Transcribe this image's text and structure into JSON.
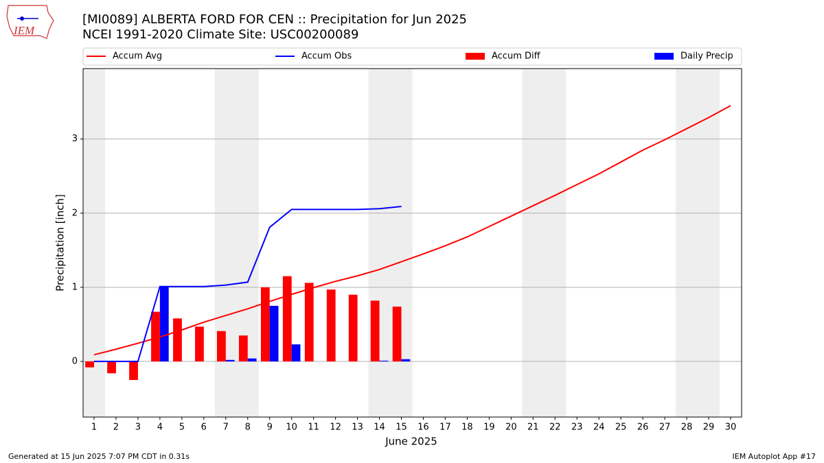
{
  "logo_text": "IEM",
  "chart_data": {
    "type": "bar-line",
    "title": "[MI0089] ALBERTA FORD FOR CEN :: Precipitation for Jun 2025",
    "subtitle": "NCEI 1991-2020 Climate Site: USC00200089",
    "x_label": "June 2025",
    "y_label": "Precipitation [inch]",
    "x": [
      1,
      2,
      3,
      4,
      5,
      6,
      7,
      8,
      9,
      10,
      11,
      12,
      13,
      14,
      15,
      16,
      17,
      18,
      19,
      20,
      21,
      22,
      23,
      24,
      25,
      26,
      27,
      28,
      29,
      30
    ],
    "xlim": [
      0.5,
      30.5
    ],
    "xticks": [
      1,
      2,
      3,
      4,
      5,
      6,
      7,
      8,
      9,
      10,
      11,
      12,
      13,
      14,
      15,
      16,
      17,
      18,
      19,
      20,
      21,
      22,
      23,
      24,
      25,
      26,
      27,
      28,
      29,
      30
    ],
    "ylim": [
      -0.75,
      3.95
    ],
    "yticks": [
      0,
      1,
      2,
      3
    ],
    "grid": true,
    "legend": "top",
    "weekend_days": [
      1,
      7,
      8,
      14,
      15,
      21,
      22,
      28,
      29
    ],
    "weekend_color": "#eeeeee",
    "series": [
      {
        "name": "Accum Avg",
        "color": "#ff0000",
        "kind": "line",
        "values": [
          0.09,
          0.165,
          0.245,
          0.33,
          0.425,
          0.53,
          0.62,
          0.71,
          0.81,
          0.905,
          0.995,
          1.08,
          1.155,
          1.24,
          1.345,
          1.45,
          1.56,
          1.68,
          1.82,
          1.96,
          2.1,
          2.24,
          2.385,
          2.53,
          2.69,
          2.85,
          2.99,
          3.14,
          3.29,
          3.45
        ]
      },
      {
        "name": "Accum Obs",
        "color": "#0000ff",
        "kind": "line",
        "values": [
          0,
          0,
          0,
          1.01,
          1.01,
          1.01,
          1.03,
          1.07,
          1.81,
          2.05,
          2.05,
          2.05,
          2.05,
          2.06,
          2.09,
          null,
          null,
          null,
          null,
          null,
          null,
          null,
          null,
          null,
          null,
          null,
          null,
          null,
          null,
          null
        ]
      },
      {
        "name": "Accum Diff",
        "color": "#ff0000",
        "kind": "bar",
        "offset": -0.4,
        "values": [
          -0.08,
          -0.16,
          -0.25,
          0.67,
          0.58,
          0.47,
          0.41,
          0.35,
          1.0,
          1.15,
          1.06,
          0.97,
          0.9,
          0.82,
          0.74,
          null,
          null,
          null,
          null,
          null,
          null,
          null,
          null,
          null,
          null,
          null,
          null,
          null,
          null,
          null
        ]
      },
      {
        "name": "Daily Precip",
        "color": "#0000ff",
        "kind": "bar",
        "offset": 0,
        "values": [
          0,
          0,
          0,
          1.01,
          0,
          0,
          0.02,
          0.04,
          0.75,
          0.23,
          0,
          0,
          0,
          0.01,
          0.03,
          null,
          null,
          null,
          null,
          null,
          null,
          null,
          null,
          null,
          null,
          null,
          null,
          null,
          null,
          null
        ]
      }
    ],
    "footer_left": "Generated at 15 Jun 2025 7:07 PM CDT in 0.31s",
    "footer_right": "IEM Autoplot App #17"
  }
}
